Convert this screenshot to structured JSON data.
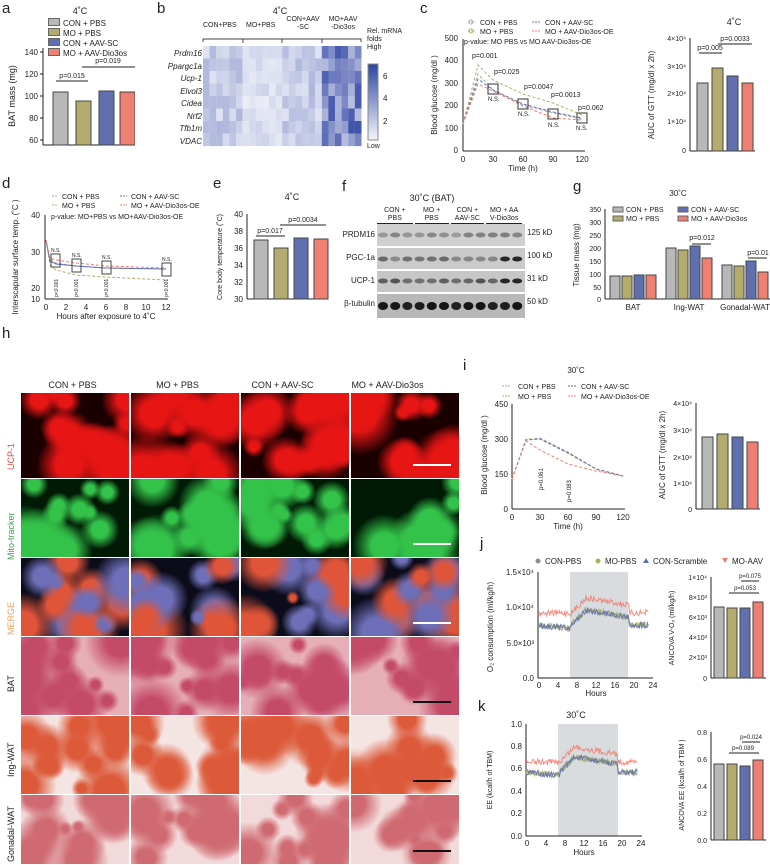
{
  "colors": {
    "con_pbs": "#b7b9b8",
    "mo_pbs": "#b3ac6e",
    "con_aav": "#5f6fb0",
    "mo_aav": "#ef7f72"
  },
  "groups": [
    "CON + PBS",
    "MO + PBS",
    "CON + AAV-SC",
    "MO + AAV-Dio3os"
  ],
  "panels": {
    "a": {
      "letter": "a",
      "title": "4˚C",
      "ylabel": "BAT mass  (mg)",
      "yticks": [
        "60",
        "80",
        "100",
        "120",
        "140"
      ],
      "p1": "p=0.015",
      "p2": "p=0.019",
      "legend": [
        "CON + PBS",
        "MO + PBS",
        "CON + AAV-SC",
        "MO + AAV-Dio3os"
      ]
    },
    "b": {
      "letter": "b",
      "title": "4˚C",
      "cols": [
        "CON+PBS",
        "MO+PBS",
        "CON+AAV\n-SC",
        "MO+AAV\n-Dio3os"
      ],
      "col1": "CON+PBS",
      "col2": "MO+PBS",
      "col3a": "CON+AAV",
      "col3b": "-SC",
      "col4a": "MO+AAV",
      "col4b": "-Dio3os",
      "genes": [
        "Prdm16",
        "Ppargc1a",
        "Ucp-1",
        "Elvol3",
        "Cidea",
        "Nrf2",
        "Tfb1m",
        "VDAC"
      ],
      "scale_title1": "Rel. mRNA",
      "scale_title2": "folds",
      "scale_high": "High",
      "scale_low": "Low",
      "scale_ticks": [
        "6",
        "4",
        "2"
      ]
    },
    "c": {
      "letter": "c",
      "ylabel": "Blood glucose (mg/dl )",
      "xlabel": "Time (h)",
      "yticks": [
        "0",
        "100",
        "200",
        "300",
        "400",
        "500"
      ],
      "xticks": [
        "0",
        "30",
        "60",
        "90",
        "120"
      ],
      "legend": [
        "CON + PBS",
        "MO + PBS",
        "CON + AAV-SC",
        "MO + AAV-Dio3os-OE"
      ],
      "note": "p-value: MO PBS vs MO AAV-Dio3os-OE",
      "pvals": [
        "p=0.001",
        "p=0.025",
        "p=0.0047",
        "p=0.0013",
        "p=0.062"
      ],
      "ns": "N.S.",
      "auc_title": "4˚C",
      "auc_ylabel": "AUC of GTT (mg/dl x 2h)",
      "auc_yticks": [
        "0",
        "1×10⁴",
        "2×10⁴",
        "3×10⁴",
        "4×10⁴"
      ],
      "auc_p1": "p=0.005",
      "auc_p2": "p=0.0033"
    },
    "d": {
      "letter": "d",
      "ylabel": "Interscapular surface temp. (˚C )",
      "xlabel": "Hours after exposure to 4˚C",
      "yticks": [
        "10",
        "20",
        "30",
        "40"
      ],
      "xticks": [
        "0",
        "2",
        "4",
        "6",
        "8",
        "10",
        "12"
      ],
      "legend": [
        "CON + PBS",
        "MO + PBS",
        "CON + AAV-SC",
        "MO + AAV-Dio3os-OE"
      ],
      "note": "p-value: MO+PBS vs MO+AAV-Dio3os-OE",
      "pval": "p<0.001",
      "ns": "N.S."
    },
    "e": {
      "letter": "e",
      "title": "4˚C",
      "ylabel": "Core body temperature (˚C)",
      "yticks": [
        "30",
        "32",
        "34",
        "36",
        "38",
        "40"
      ],
      "p1": "p=0.017",
      "p2": "p=0.0034"
    },
    "f": {
      "letter": "f",
      "title": "30˚C (BAT)",
      "cols": [
        "CON +",
        "PBS",
        "MO +",
        "PBS",
        "CON +",
        "AAV-SC",
        "MO + AA",
        "V-Dio3os"
      ],
      "bands": [
        "PRDM16",
        "PGC-1a",
        "UCP-1",
        "β-tubulin"
      ],
      "kd": [
        "125 kD",
        "100 kD",
        "31 kD",
        "50 kD"
      ]
    },
    "g": {
      "letter": "g",
      "title": "30˚C",
      "ylabel": "Tissue mass  (mg)",
      "yticks": [
        "0",
        "50",
        "100",
        "150",
        "200",
        "250",
        "300",
        "350"
      ],
      "legend": [
        "CON + PBS",
        "MO + PBS",
        "CON + AAV-SC",
        "MO + AAV-Dio3os"
      ],
      "cats": [
        "BAT",
        "Ing-WAT",
        "Gonadal-WAT"
      ],
      "p1": "p=0.012",
      "p2": "p=0.01"
    },
    "h": {
      "letter": "h",
      "cols": [
        "CON + PBS",
        "MO + PBS",
        "CON + AAV-SC",
        "MO + AAV-Dio3os"
      ],
      "rows": [
        "UCP-1",
        "Mito-tracker",
        "MERGE",
        "BAT",
        "Ing-WAT",
        "Gonadal-WAT"
      ]
    },
    "i": {
      "letter": "i",
      "title": "30˚C",
      "ylabel": "Blood glucose (mg/dl )",
      "xlabel": "Time (h)",
      "yticks": [
        "0",
        "150",
        "300",
        "450"
      ],
      "xticks": [
        "0",
        "30",
        "60",
        "90",
        "120"
      ],
      "legend": [
        "CON + PBS",
        "MO + PBS",
        "CON + AAV-SC",
        "MO + AAV-Dio3os-OE"
      ],
      "pvals": [
        "p=0.061",
        "p=0.083"
      ],
      "auc_ylabel": "AUC of GTT (mg/dl x 2h)",
      "auc_yticks": [
        "0",
        "1×10⁴",
        "2×10⁴",
        "3×10⁴",
        "4×10⁴"
      ]
    },
    "j": {
      "letter": "j",
      "legend": [
        "CON-PBS",
        "MO-PBS",
        "CON-Scramble",
        "MO-AAV"
      ],
      "ylabel": "O₂ consumption (ml/kg/h)",
      "xlabel": "Hours",
      "yticks": [
        "0.0",
        "5.0×10³",
        "1.0×10⁴",
        "1.5×10⁴"
      ],
      "xticks": [
        "0",
        "4",
        "8",
        "12",
        "16",
        "20",
        "24"
      ],
      "bar_ylabel": "ANCOVA V-O₂  (ml/kg/h)",
      "bar_yticks": [
        "0",
        "2×10³",
        "4×10³",
        "6×10³",
        "8×10³",
        "1×10⁴"
      ],
      "p1": "p=0.075",
      "p2": "p=0.053"
    },
    "k": {
      "letter": "k",
      "title": "30˚C",
      "ylabel": "EE (kcal/h of TBM)",
      "xlabel": "Hours",
      "yticks": [
        "0.0",
        "0.2",
        "0.4",
        "0.6",
        "0.8",
        "1.0"
      ],
      "xticks": [
        "0",
        "4",
        "8",
        "12",
        "16",
        "20",
        "24"
      ],
      "bar_ylabel": "ANCOVA EE  (kcal/h of TBM )",
      "bar_yticks": [
        "0.0",
        "0.2",
        "0.4",
        "0.6",
        "0.8"
      ],
      "p1": "p=0.024",
      "p2": "p=0.089"
    }
  },
  "chart_data": [
    {
      "id": "a",
      "type": "bar",
      "title": "4˚C",
      "ylabel": "BAT mass (mg)",
      "categories": [
        "CON + PBS",
        "MO + PBS",
        "CON + AAV-SC",
        "MO + AAV-Dio3os"
      ],
      "values": [
        103,
        95,
        104,
        103
      ],
      "ylim": [
        50,
        145
      ],
      "annotations": [
        "p=0.015 (CON+PBS vs MO+PBS)",
        "p=0.019 (MO+PBS vs MO+AAV-Dio3os)"
      ]
    },
    {
      "id": "b",
      "type": "heatmap",
      "title": "4˚C",
      "rows": [
        "Prdm16",
        "Ppargc1a",
        "Ucp-1",
        "Elvol3",
        "Cidea",
        "Nrf2",
        "Tfb1m",
        "VDAC"
      ],
      "columns": [
        "CON+PBS",
        "MO+PBS",
        "CON+AAV-SC",
        "MO+AAV-Dio3os"
      ],
      "colorbar": "Rel. mRNA folds",
      "range": [
        0,
        7
      ]
    },
    {
      "id": "c_line",
      "type": "line",
      "ylabel": "Blood glucose (mg/dl)",
      "xlabel": "Time (h)",
      "x": [
        0,
        15,
        30,
        60,
        90,
        120
      ],
      "ylim": [
        0,
        500
      ],
      "series": [
        {
          "name": "CON + PBS",
          "values": [
            120,
            345,
            275,
            205,
            170,
            145
          ]
        },
        {
          "name": "MO + PBS",
          "values": [
            120,
            385,
            320,
            255,
            215,
            160
          ]
        },
        {
          "name": "CON + AAV-SC",
          "values": [
            120,
            320,
            275,
            210,
            175,
            150
          ]
        },
        {
          "name": "MO + AAV-Dio3os-OE",
          "values": [
            120,
            300,
            270,
            200,
            145,
            140
          ]
        }
      ],
      "annotations": [
        "p=0.001",
        "p=0.025",
        "p=0.0047",
        "p=0.0013",
        "p=0.062",
        "N.S."
      ]
    },
    {
      "id": "c_auc",
      "type": "bar",
      "title": "4˚C",
      "ylabel": "AUC of GTT (mg/dl x 2h)",
      "categories": [
        "CON + PBS",
        "MO + PBS",
        "CON + AAV-SC",
        "MO + AAV-Dio3os"
      ],
      "values": [
        24500,
        29000,
        26500,
        24300
      ],
      "ylim": [
        0,
        40000
      ],
      "annotations": [
        "p=0.005",
        "p=0.0033"
      ]
    },
    {
      "id": "d",
      "type": "line",
      "xlabel": "Hours after exposure to 4˚C",
      "ylabel": "Interscapular surface temp. (˚C)",
      "x": [
        0,
        0.5,
        1,
        3,
        6,
        12
      ],
      "ylim": [
        10,
        40
      ],
      "series": [
        {
          "name": "CON + PBS",
          "values": [
            33,
            26,
            25,
            24,
            23.5,
            23.5
          ]
        },
        {
          "name": "MO + PBS",
          "values": [
            33,
            24.5,
            22.5,
            21.5,
            21,
            20
          ]
        },
        {
          "name": "CON + AAV-SC",
          "values": [
            33,
            25.5,
            24.5,
            24,
            23.5,
            23.5
          ]
        },
        {
          "name": "MO + AAV-Dio3os-OE",
          "values": [
            33,
            26.5,
            26,
            25,
            24,
            23.5
          ]
        }
      ],
      "annotations": [
        "p<0.001",
        "N.S."
      ]
    },
    {
      "id": "e",
      "type": "bar",
      "title": "4˚C",
      "ylabel": "Core body temperature (˚C)",
      "categories": [
        "CON + PBS",
        "MO + PBS",
        "CON + AAV-SC",
        "MO + AAV-Dio3os"
      ],
      "values": [
        37.0,
        36.0,
        37.2,
        37.1
      ],
      "ylim": [
        30,
        40
      ],
      "annotations": [
        "p=0.017",
        "p=0.0034"
      ]
    },
    {
      "id": "g",
      "type": "bar",
      "title": "30˚C",
      "ylabel": "Tissue mass (mg)",
      "categories": [
        "BAT",
        "Ing-WAT",
        "Gonadal-WAT"
      ],
      "ylim": [
        0,
        350
      ],
      "series": [
        {
          "name": "CON + PBS",
          "values": [
            90,
            195,
            133
          ]
        },
        {
          "name": "MO + PBS",
          "values": [
            88,
            190,
            128
          ]
        },
        {
          "name": "CON + AAV-SC",
          "values": [
            92,
            205,
            145
          ]
        },
        {
          "name": "MO + AAV-Dio3os",
          "values": [
            92,
            158,
            105
          ]
        }
      ],
      "annotations": [
        "p=0.012",
        "p=0.01"
      ]
    },
    {
      "id": "i_line",
      "type": "line",
      "title": "30˚C",
      "ylabel": "Blood glucose (mg/dl)",
      "xlabel": "Time (h)",
      "x": [
        0,
        15,
        30,
        60,
        90,
        120
      ],
      "ylim": [
        0,
        450
      ],
      "series": [
        {
          "name": "CON + PBS",
          "values": [
            130,
            300,
            310,
            250,
            180,
            145
          ]
        },
        {
          "name": "MO + PBS",
          "values": [
            130,
            305,
            305,
            245,
            180,
            145
          ]
        },
        {
          "name": "CON + AAV-SC",
          "values": [
            130,
            300,
            305,
            245,
            180,
            145
          ]
        },
        {
          "name": "MO + AAV-Dio3os-OE",
          "values": [
            130,
            295,
            255,
            195,
            165,
            145
          ]
        }
      ],
      "annotations": [
        "p=0.061",
        "p=0.083"
      ]
    },
    {
      "id": "i_auc",
      "type": "bar",
      "ylabel": "AUC of GTT (mg/dl x 2h)",
      "categories": [
        "CON + PBS",
        "MO + PBS",
        "CON + AAV-SC",
        "MO + AAV-Dio3os"
      ],
      "values": [
        27000,
        28000,
        27200,
        25200
      ],
      "ylim": [
        0,
        40000
      ]
    },
    {
      "id": "j_line",
      "type": "line",
      "ylabel": "O₂ consumption (ml/kg/h)",
      "xlabel": "Hours",
      "xlim": [
        0,
        24
      ],
      "ylim": [
        0,
        15000
      ],
      "dark_phase": [
        7,
        19
      ],
      "series": [
        {
          "name": "CON-PBS",
          "values": [
            7500,
            6500,
            6000,
            6000,
            8000,
            7500,
            7000,
            6500,
            6500,
            6000
          ]
        },
        {
          "name": "MO-PBS",
          "values": [
            7800,
            6500,
            6000,
            6000,
            8300,
            7800,
            7200,
            7000,
            7000,
            6500
          ]
        },
        {
          "name": "CON-Scramble",
          "values": [
            7500,
            6200,
            6000,
            6000,
            8000,
            7500,
            7000,
            6500,
            6500,
            6000
          ]
        },
        {
          "name": "MO-AAV",
          "values": [
            8500,
            8500,
            8500,
            8200,
            10000,
            9000,
            8500,
            8500,
            9000,
            8000
          ]
        }
      ]
    },
    {
      "id": "j_bar",
      "type": "bar",
      "ylabel": "ANCOVA V-O₂ (ml/kg/h)",
      "categories": [
        "CON-PBS",
        "MO-PBS",
        "CON-Scramble",
        "MO-AAV"
      ],
      "values": [
        7100,
        7000,
        7000,
        7600
      ],
      "ylim": [
        0,
        10000
      ],
      "annotations": [
        "p=0.075",
        "p=0.053"
      ]
    },
    {
      "id": "k_line",
      "type": "line",
      "title": "30˚C",
      "ylabel": "EE (kcal/h of TBM)",
      "xlabel": "Hours",
      "xlim": [
        0,
        24
      ],
      "ylim": [
        0,
        1.0
      ],
      "dark_phase": [
        7,
        19
      ],
      "series": [
        {
          "name": "CON-PBS",
          "values": [
            0.58,
            0.5,
            0.48,
            0.48,
            0.65,
            0.6,
            0.58,
            0.55,
            0.5,
            0.45
          ]
        },
        {
          "name": "MO-PBS",
          "values": [
            0.6,
            0.52,
            0.5,
            0.5,
            0.68,
            0.62,
            0.6,
            0.58,
            0.55,
            0.5
          ]
        },
        {
          "name": "CON-Scramble",
          "values": [
            0.58,
            0.5,
            0.48,
            0.47,
            0.63,
            0.6,
            0.57,
            0.55,
            0.5,
            0.42
          ]
        },
        {
          "name": "MO-AAV",
          "values": [
            0.65,
            0.62,
            0.62,
            0.6,
            0.75,
            0.7,
            0.65,
            0.62,
            0.62,
            0.6
          ]
        }
      ]
    },
    {
      "id": "k_bar",
      "type": "bar",
      "ylabel": "ANCOVA EE (kcal/h of TBM)",
      "categories": [
        "CON-PBS",
        "MO-PBS",
        "CON-Scramble",
        "MO-AAV"
      ],
      "values": [
        0.56,
        0.56,
        0.55,
        0.6
      ],
      "ylim": [
        0,
        0.8
      ],
      "annotations": [
        "p=0.024",
        "p=0.089"
      ]
    }
  ]
}
